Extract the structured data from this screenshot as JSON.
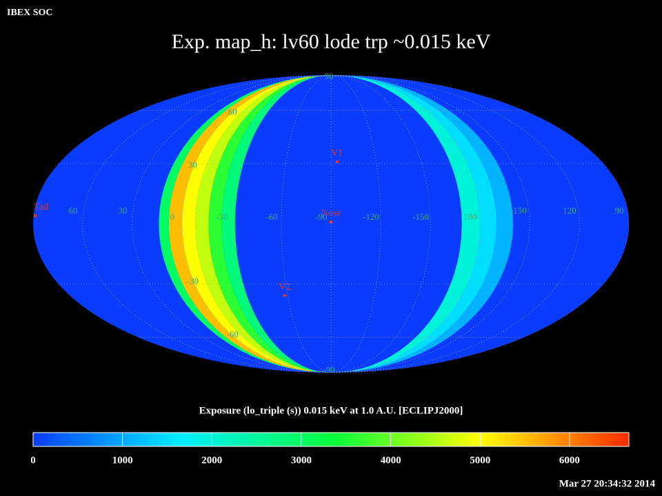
{
  "header": {
    "org": "IBEX SOC",
    "timestamp": "Mar 27 20:34:32 2014"
  },
  "chart_data": {
    "type": "skymap",
    "title": "Exp.   map_h: lv60 lode trp ~0.015 keV",
    "projection": "mollweide",
    "center_lon": -90,
    "colorbar_label": "Exposure (lo_triple (s))  0.015 keV at 1.0 A.U. [ECLIPJ2000]",
    "clim": [
      0,
      6664
    ],
    "cticks": [
      0,
      1000,
      2000,
      3000,
      4000,
      5000,
      6000
    ],
    "colormap": [
      "#0a3cff",
      "#00f0ff",
      "#00ff3c",
      "#ffff00",
      "#ff2a00"
    ],
    "lon_ticks": [
      60,
      30,
      0,
      -30,
      -60,
      -90,
      -120,
      -150,
      180,
      150,
      120,
      90
    ],
    "lat_ticks": [
      90,
      60,
      30,
      -30,
      -60,
      -90
    ],
    "grid": true,
    "bands": [
      {
        "lon": [
          14,
          8
        ],
        "value": 3000
      },
      {
        "lon": [
          8,
          0
        ],
        "value": 5500
      },
      {
        "lon": [
          0,
          -8
        ],
        "value": 5000
      },
      {
        "lon": [
          -8,
          -16
        ],
        "value": 4600
      },
      {
        "lon": [
          -16,
          -24
        ],
        "value": 3600
      },
      {
        "lon": [
          -24,
          -32
        ],
        "value": 2800
      },
      {
        "lon": [
          -169,
          -180
        ],
        "value": 2000
      },
      {
        "lon": [
          -180,
          -190
        ],
        "value": 1500
      },
      {
        "lon": [
          -190,
          -200
        ],
        "value": 1100
      }
    ],
    "markers": [
      {
        "name": "V1",
        "lon": -94,
        "lat": 31
      },
      {
        "name": "Nose",
        "lon": -90,
        "lat": 1
      },
      {
        "name": "V2",
        "lon": -58,
        "lat": -36
      },
      {
        "name": "Tail",
        "lon": 89,
        "lat": 4
      }
    ]
  }
}
